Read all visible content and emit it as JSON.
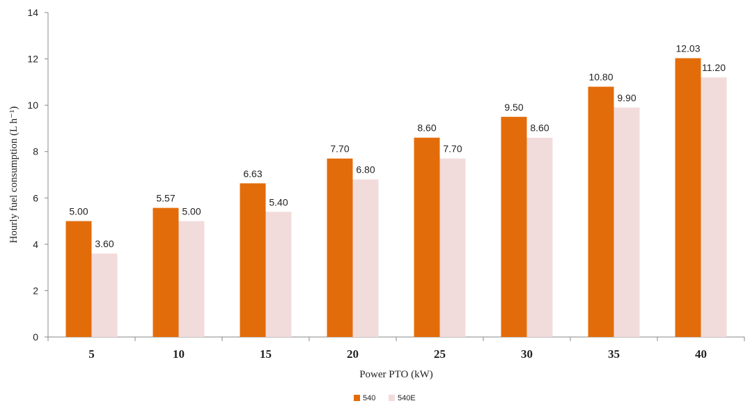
{
  "chart_data": {
    "type": "bar",
    "categories": [
      "5",
      "10",
      "15",
      "20",
      "25",
      "30",
      "35",
      "40"
    ],
    "series": [
      {
        "name": "540",
        "color": "#e36c0a",
        "values": [
          5.0,
          5.57,
          6.63,
          7.7,
          8.6,
          9.5,
          10.8,
          12.03
        ],
        "labels": [
          "5.00",
          "5.57",
          "6.63",
          "7.70",
          "8.60",
          "9.50",
          "10.80",
          "12.03"
        ]
      },
      {
        "name": "540E",
        "color": "#f2dcdb",
        "values": [
          3.6,
          5.0,
          5.4,
          6.8,
          7.7,
          8.6,
          9.9,
          11.2
        ],
        "labels": [
          "3.60",
          "5.00",
          "5.40",
          "6.80",
          "7.70",
          "8.60",
          "9.90",
          "11.20"
        ]
      }
    ],
    "xlabel": "Power PTO (kW)",
    "ylabel": "Hourly fuel consumption (L h⁻¹)",
    "ylim": [
      0,
      14
    ],
    "yticks": [
      "0",
      "2",
      "4",
      "6",
      "8",
      "10",
      "12",
      "14"
    ],
    "grid": false,
    "legend_position": "bottom-center"
  }
}
